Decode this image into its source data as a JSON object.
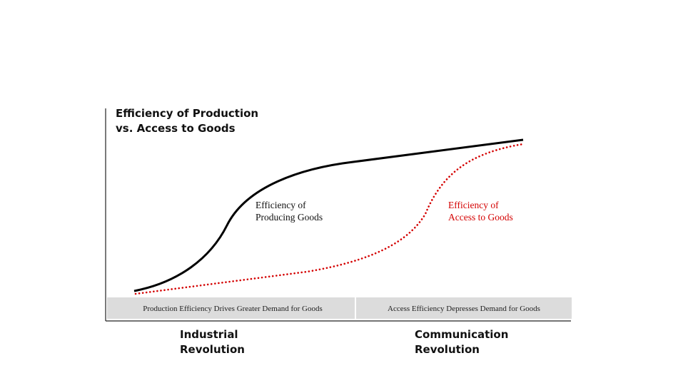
{
  "title": {
    "lines": [
      "Efficiency of Production",
      "vs. Access to Goods"
    ]
  },
  "curves": [
    {
      "label": [
        "Efficiency of",
        "Producing Goods"
      ]
    },
    {
      "label": [
        "Efficiency of",
        "Access to Goods"
      ]
    }
  ],
  "bands": [
    "Production Efficiency Drives Greater Demand for Goods",
    "Access Efficiency Depresses Demand for Goods"
  ],
  "eras": [
    {
      "label": [
        "Industrial",
        "Revolution"
      ]
    },
    {
      "label": [
        "Communication",
        "Revolution"
      ]
    }
  ]
}
